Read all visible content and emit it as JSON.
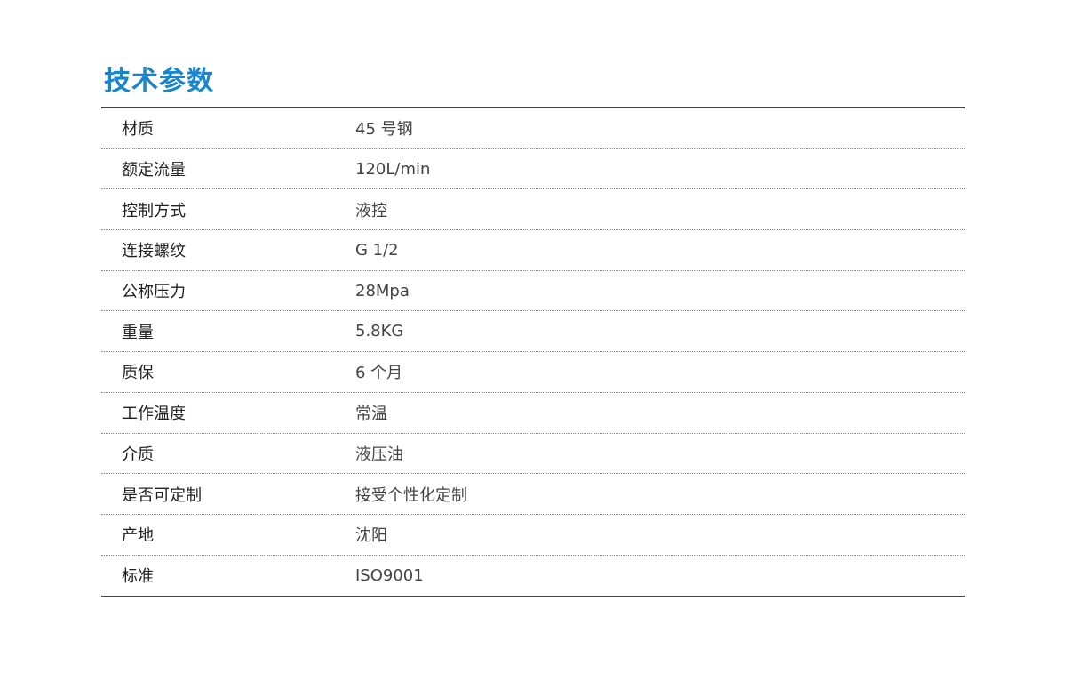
{
  "title": "技术参数",
  "rows": [
    {
      "label": "材质",
      "value": "45 号钢"
    },
    {
      "label": "额定流量",
      "value": "120L/min"
    },
    {
      "label": "控制方式",
      "value": "液控"
    },
    {
      "label": "连接螺纹",
      "value": "G 1/2"
    },
    {
      "label": "公称压力",
      "value": "28Mpa"
    },
    {
      "label": "重量",
      "value": "5.8KG"
    },
    {
      "label": "质保",
      "value": "6 个月"
    },
    {
      "label": "工作温度",
      "value": "常温"
    },
    {
      "label": "介质",
      "value": "液压油"
    },
    {
      "label": "是否可定制",
      "value": "接受个性化定制"
    },
    {
      "label": "产地",
      "value": "沈阳"
    },
    {
      "label": "标准",
      "value": "ISO9001"
    }
  ],
  "colors": {
    "title": "#1686d0"
  }
}
